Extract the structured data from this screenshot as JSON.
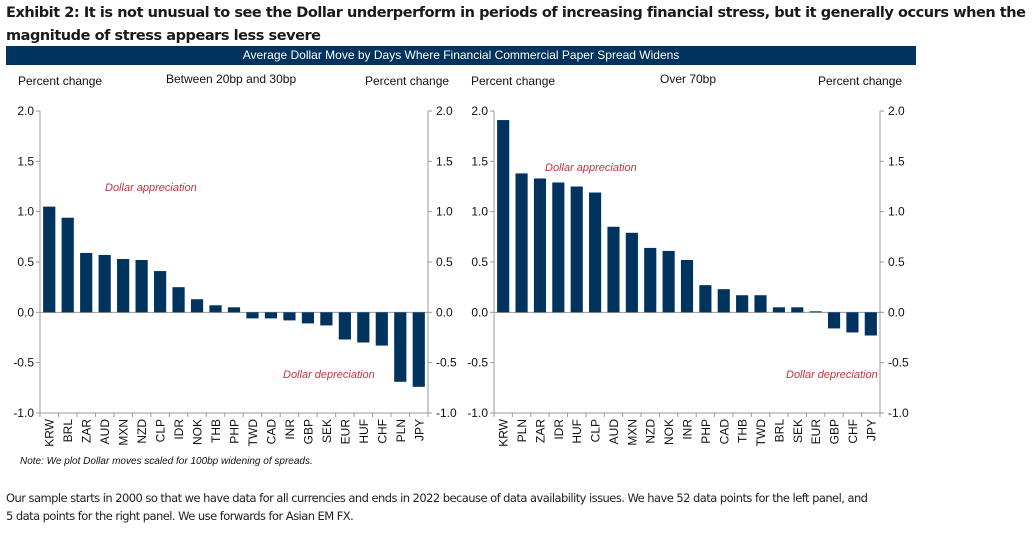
{
  "title": "Exhibit 2: It is not unusual to see the Dollar underperform in periods of increasing financial stress, but it generally occurs when the magnitude of stress appears less severe",
  "banner": "Average Dollar Move by Days Where Financial Commercial Paper Spread Widens",
  "note": "Note: We plot Dollar moves scaled for 100bp widening of spreads.",
  "footnote": "Our sample starts in 2000 so that we have data for all currencies and ends in 2022 because of data availability issues. We have 52 data points for the left panel, and 5 data points for the right panel. We use forwards for Asian EM FX.",
  "colors": {
    "bar": "#00335e",
    "banner": "#00335e",
    "annotation": "#c0343a",
    "axis": "#999999"
  },
  "chart_data": [
    {
      "type": "bar",
      "title": "Between 20bp and 30bp",
      "ylabel_left": "Percent change",
      "ylabel_right": "Percent change",
      "ylim": [
        -1.0,
        2.0
      ],
      "yticks": [
        "2.0",
        "1.5",
        "1.0",
        "0.5",
        "0.0",
        "-0.5",
        "-1.0"
      ],
      "ytick_values": [
        2.0,
        1.5,
        1.0,
        0.5,
        0.0,
        -0.5,
        -1.0
      ],
      "grid": false,
      "annotations": {
        "top": "Dollar appreciation",
        "bottom": "Dollar depreciation"
      },
      "categories": [
        "KRW",
        "BRL",
        "ZAR",
        "AUD",
        "MXN",
        "NZD",
        "CLP",
        "IDR",
        "NOK",
        "THB",
        "PHP",
        "TWD",
        "CAD",
        "INR",
        "GBP",
        "SEK",
        "EUR",
        "HUF",
        "CHF",
        "PLN",
        "JPY"
      ],
      "values": [
        1.05,
        0.94,
        0.59,
        0.57,
        0.53,
        0.52,
        0.41,
        0.25,
        0.13,
        0.07,
        0.05,
        -0.06,
        -0.06,
        -0.08,
        -0.11,
        -0.13,
        -0.27,
        -0.3,
        -0.33,
        -0.69,
        -0.74
      ]
    },
    {
      "type": "bar",
      "title": "Over 70bp",
      "ylabel_left": "Percent change",
      "ylabel_right": "Percent change",
      "ylim": [
        -1.0,
        2.0
      ],
      "yticks": [
        "2.0",
        "1.5",
        "1.0",
        "0.5",
        "0.0",
        "-0.5",
        "-1.0"
      ],
      "ytick_values": [
        2.0,
        1.5,
        1.0,
        0.5,
        0.0,
        -0.5,
        -1.0
      ],
      "grid": false,
      "annotations": {
        "top": "Dollar appreciation",
        "bottom": "Dollar depreciation"
      },
      "categories": [
        "KRW",
        "PLN",
        "ZAR",
        "IDR",
        "HUF",
        "CLP",
        "AUD",
        "MXN",
        "NZD",
        "NOK",
        "INR",
        "PHP",
        "CAD",
        "THB",
        "TWD",
        "BRL",
        "SEK",
        "EUR",
        "GBP",
        "CHF",
        "JPY"
      ],
      "values": [
        1.91,
        1.38,
        1.33,
        1.29,
        1.25,
        1.19,
        0.85,
        0.79,
        0.64,
        0.61,
        0.52,
        0.27,
        0.23,
        0.17,
        0.17,
        0.05,
        0.05,
        0.01,
        -0.16,
        -0.2,
        -0.23
      ]
    }
  ]
}
